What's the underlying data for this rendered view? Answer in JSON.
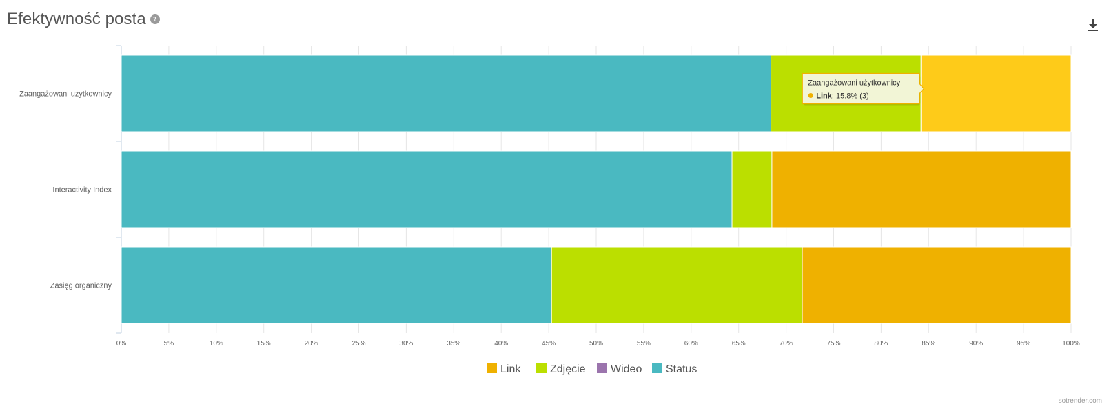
{
  "header": {
    "title": "Efektywność posta",
    "help_icon": "question-circle-icon",
    "download_icon": "download-icon"
  },
  "credit": "sotrender.com",
  "colors": {
    "Link": "#efb100",
    "Link_hover": "#fecb19",
    "Zdjęcie": "#bbdf00",
    "Wideo": "#9b74ad",
    "Status": "#4ab9c1"
  },
  "chart_data": {
    "type": "bar",
    "orientation": "horizontal",
    "stacking": "percent",
    "categories": [
      "Zaangażowani użytkownicy",
      "Interactivity Index",
      "Zasięg organiczny"
    ],
    "series": [
      {
        "name": "Status",
        "values": [
          68.4,
          64.3,
          45.3
        ]
      },
      {
        "name": "Wideo",
        "values": [
          0,
          0,
          0
        ]
      },
      {
        "name": "Zdjęcie",
        "values": [
          15.8,
          4.2,
          26.4
        ]
      },
      {
        "name": "Link",
        "values": [
          15.8,
          31.5,
          28.3
        ]
      }
    ],
    "xlim": [
      0,
      100
    ],
    "x_ticks": [
      "0%",
      "5%",
      "10%",
      "15%",
      "20%",
      "25%",
      "30%",
      "35%",
      "40%",
      "45%",
      "50%",
      "55%",
      "60%",
      "65%",
      "70%",
      "75%",
      "80%",
      "85%",
      "90%",
      "95%",
      "100%"
    ],
    "grid": true,
    "legend": {
      "position": "bottom-center",
      "items": [
        "Link",
        "Zdjęcie",
        "Wideo",
        "Status"
      ]
    },
    "tooltip": {
      "category": "Zaangażowani użytkownicy",
      "series": "Link",
      "series_label": "Link",
      "value_text": ": 15.8% (3)"
    }
  }
}
